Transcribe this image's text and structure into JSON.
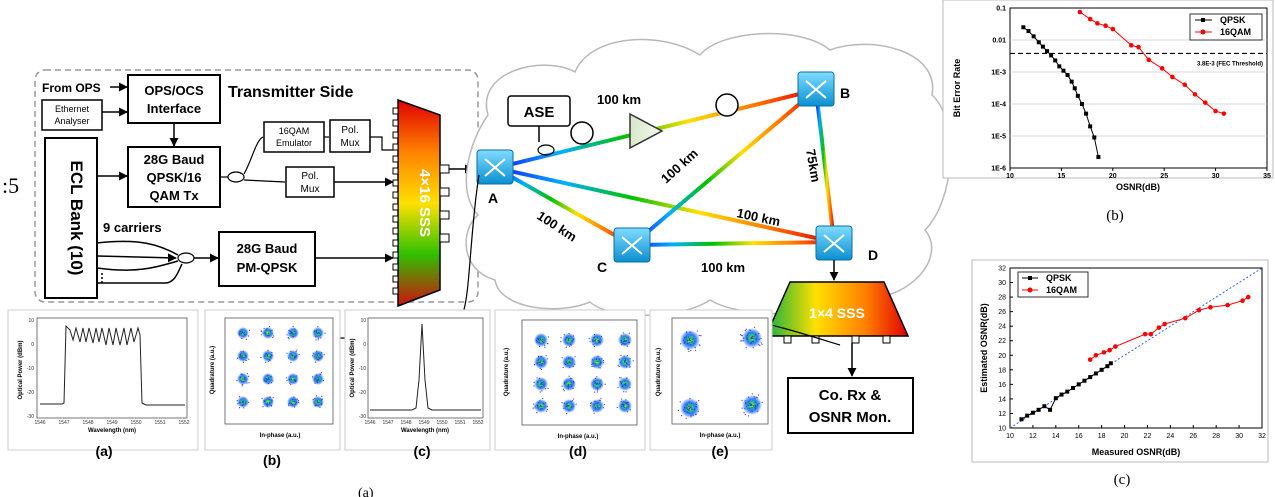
{
  "setup": {
    "transmitter_side": "Transmitter Side",
    "from_ops": "From OPS",
    "ops_ocs": [
      "OPS/OCS",
      "Interface"
    ],
    "ethernet": [
      "Ethernet",
      "Analyser"
    ],
    "ecl_bank": "ECL Bank (10)",
    "tx": [
      "28G Baud",
      "QPSK/16",
      "QAM Tx"
    ],
    "emulator": [
      "16QAM",
      "Emulator"
    ],
    "polmux": [
      "Pol.",
      "Mux"
    ],
    "carriers": "9 carriers",
    "pmqpsk": [
      "28G Baud",
      "PM-QPSK"
    ],
    "sss_main": "4×16 SSS",
    "sss_out": "1×4 SSS",
    "ase": "ASE",
    "rx": [
      "Co. Rx &",
      "OSNR Mon."
    ],
    "nodes": [
      "A",
      "B",
      "C",
      "D"
    ],
    "spans": [
      "100 km",
      "100 km",
      "75km",
      "100 km",
      "100 km",
      "100 km"
    ],
    "side_mark": ":5",
    "caption": "(a)"
  },
  "insets": [
    {
      "label": "(a)",
      "ylabel": "Optical Power (dBm)",
      "xlabel": "Wavelength (nm)",
      "xticks": [
        "1546",
        "1547",
        "1548",
        "1549",
        "1550",
        "1551",
        "1552"
      ],
      "yticks": [
        "10",
        "0",
        "-10",
        "-20",
        "-30"
      ]
    },
    {
      "label": "(b)",
      "ylabel": "Quadrature (a.u.)",
      "xlabel": "In-phase (a.u.)"
    },
    {
      "label": "(c)",
      "ylabel": "Optical Power (dBm)",
      "xlabel": "Wavelength (nm)",
      "xticks": [
        "1546",
        "1547",
        "1548",
        "1549",
        "1550",
        "1551",
        "1552"
      ],
      "yticks": [
        "10",
        "0",
        "-10",
        "-20",
        "-30"
      ]
    },
    {
      "label": "(d)",
      "ylabel": "Quadrature (a.u.)",
      "xlabel": "In-phase (a.u.)"
    },
    {
      "label": "(e)",
      "ylabel": "Quadrature (a.u.)",
      "xlabel": "In-phase (a.u.)"
    }
  ],
  "chart_data": [
    {
      "type": "line",
      "label": "(b)",
      "xlabel": "OSNR(dB)",
      "ylabel": "Bit Error Rate",
      "xlim": [
        10,
        35
      ],
      "ylim_log10": [
        -6,
        -1
      ],
      "xticks": [
        "10",
        "15",
        "20",
        "25",
        "30",
        "35"
      ],
      "yticks": [
        "0.1",
        "0.01",
        "1E-3",
        "1E-4",
        "1E-5",
        "1E-6"
      ],
      "threshold": {
        "y": 0.0038,
        "label": "3.8E-3 (FEC Threshold)"
      },
      "legend_position": "top-right",
      "series": [
        {
          "name": "QPSK",
          "color": "#000000",
          "x": [
            11.3,
            11.8,
            12.3,
            12.8,
            13.2,
            13.6,
            14.0,
            14.4,
            14.8,
            15.2,
            15.6,
            16.0,
            16.3,
            16.6,
            17.0,
            17.4,
            17.8,
            18.2,
            18.6
          ],
          "y": [
            0.025,
            0.019,
            0.013,
            0.0085,
            0.0062,
            0.0045,
            0.0033,
            0.0023,
            0.0015,
            0.0011,
            0.0008,
            0.0005,
            0.00031,
            0.00018,
            0.0001,
            5e-05,
            2e-05,
            9e-06,
            2.2e-06
          ]
        },
        {
          "name": "16QAM",
          "color": "#ff0000",
          "x": [
            16.8,
            17.8,
            18.5,
            19.3,
            20.0,
            21.8,
            22.5,
            23.5,
            24.8,
            25.8,
            27.0,
            28.0,
            29.0,
            30.0,
            30.8
          ],
          "y": [
            0.075,
            0.045,
            0.033,
            0.028,
            0.022,
            0.0068,
            0.006,
            0.0024,
            0.0013,
            0.0007,
            0.0004,
            0.0002,
            0.00011,
            6e-05,
            5e-05
          ]
        }
      ]
    },
    {
      "type": "scatter",
      "label": "(c)",
      "xlabel": "Measured OSNR(dB)",
      "ylabel": "Estimated OSNR(dB)",
      "xlim": [
        10,
        32
      ],
      "ylim": [
        10,
        32
      ],
      "xticks": [
        "10",
        "12",
        "14",
        "16",
        "18",
        "20",
        "22",
        "24",
        "26",
        "28",
        "30",
        "32"
      ],
      "yticks": [
        "10",
        "12",
        "14",
        "16",
        "18",
        "20",
        "22",
        "24",
        "26",
        "28",
        "30",
        "32"
      ],
      "legend_position": "top-left",
      "series": [
        {
          "name": "QPSK",
          "color": "#000000",
          "x": [
            11.0,
            11.5,
            12.0,
            12.5,
            13.0,
            13.5,
            14.0,
            14.5,
            15.0,
            15.5,
            16.0,
            16.5,
            17.0,
            17.5,
            18.0,
            18.5,
            18.8
          ],
          "y": [
            11.2,
            11.7,
            12.1,
            12.5,
            13.0,
            12.5,
            14.1,
            14.6,
            15.0,
            15.5,
            16.0,
            16.5,
            17.0,
            17.5,
            18.0,
            18.5,
            18.9
          ]
        },
        {
          "name": "16QAM",
          "color": "#ff0000",
          "x": [
            17.0,
            17.5,
            18.2,
            18.7,
            19.2,
            21.8,
            22.3,
            23.0,
            23.5,
            25.3,
            26.5,
            27.5,
            29.0,
            30.3,
            30.8
          ],
          "y": [
            19.4,
            20.0,
            20.4,
            20.7,
            21.2,
            22.9,
            22.9,
            23.8,
            24.3,
            25.1,
            26.2,
            26.6,
            26.9,
            27.5,
            28.0
          ]
        }
      ]
    }
  ]
}
